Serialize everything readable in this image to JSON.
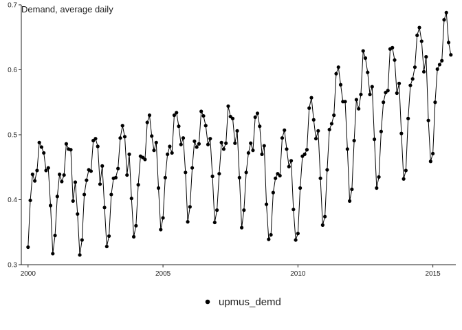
{
  "chart_data": {
    "type": "line",
    "title": "Demand, average daily",
    "xlabel": "",
    "ylabel": "",
    "xlim": [
      1999.75,
      2015.85
    ],
    "ylim": [
      0.3,
      0.7
    ],
    "x_ticks": [
      2000,
      2005,
      2010,
      2015
    ],
    "x_tick_labels": [
      "2000",
      "2005",
      "2010",
      "2015"
    ],
    "y_ticks": [
      0.3,
      0.4,
      0.5,
      0.6,
      0.7
    ],
    "y_tick_labels": [
      "0.3",
      "0.4",
      "0.5",
      "0.6",
      "0.7"
    ],
    "grid": false,
    "legend_position": "bottom",
    "series_color": "#000000",
    "series": [
      {
        "name": "upmus_demd",
        "start": 2000.0,
        "step": 0.0833333,
        "values": [
          0.327,
          0.399,
          0.439,
          0.429,
          0.445,
          0.488,
          0.481,
          0.472,
          0.445,
          0.449,
          0.391,
          0.317,
          0.345,
          0.405,
          0.439,
          0.428,
          0.438,
          0.486,
          0.478,
          0.477,
          0.398,
          0.427,
          0.378,
          0.315,
          0.338,
          0.408,
          0.43,
          0.446,
          0.444,
          0.491,
          0.494,
          0.482,
          0.424,
          0.452,
          0.388,
          0.328,
          0.344,
          0.408,
          0.433,
          0.434,
          0.448,
          0.495,
          0.514,
          0.497,
          0.438,
          0.47,
          0.402,
          0.343,
          0.36,
          0.423,
          0.467,
          0.465,
          0.462,
          0.519,
          0.53,
          0.498,
          0.476,
          0.488,
          0.418,
          0.354,
          0.372,
          0.434,
          0.47,
          0.482,
          0.472,
          0.53,
          0.534,
          0.513,
          0.485,
          0.495,
          0.442,
          0.366,
          0.389,
          0.449,
          0.49,
          0.481,
          0.486,
          0.536,
          0.529,
          0.514,
          0.485,
          0.494,
          0.436,
          0.365,
          0.384,
          0.44,
          0.488,
          0.478,
          0.487,
          0.544,
          0.528,
          0.525,
          0.487,
          0.506,
          0.434,
          0.357,
          0.384,
          0.442,
          0.472,
          0.487,
          0.476,
          0.527,
          0.533,
          0.513,
          0.47,
          0.483,
          0.393,
          0.339,
          0.346,
          0.411,
          0.433,
          0.44,
          0.437,
          0.495,
          0.507,
          0.478,
          0.451,
          0.46,
          0.385,
          0.338,
          0.348,
          0.418,
          0.467,
          0.47,
          0.477,
          0.541,
          0.557,
          0.523,
          0.494,
          0.506,
          0.433,
          0.361,
          0.374,
          0.446,
          0.508,
          0.517,
          0.53,
          0.594,
          0.604,
          0.577,
          0.551,
          0.551,
          0.478,
          0.398,
          0.416,
          0.491,
          0.554,
          0.54,
          0.562,
          0.629,
          0.618,
          0.596,
          0.562,
          0.574,
          0.493,
          0.418,
          0.435,
          0.505,
          0.55,
          0.565,
          0.568,
          0.632,
          0.634,
          0.615,
          0.564,
          0.579,
          0.502,
          0.432,
          0.445,
          0.525,
          0.576,
          0.586,
          0.604,
          0.653,
          0.665,
          0.644,
          0.597,
          0.62,
          0.522,
          0.459,
          0.471,
          0.55,
          0.601,
          0.608,
          0.614,
          0.677,
          0.688,
          0.642,
          0.623
        ]
      }
    ]
  }
}
